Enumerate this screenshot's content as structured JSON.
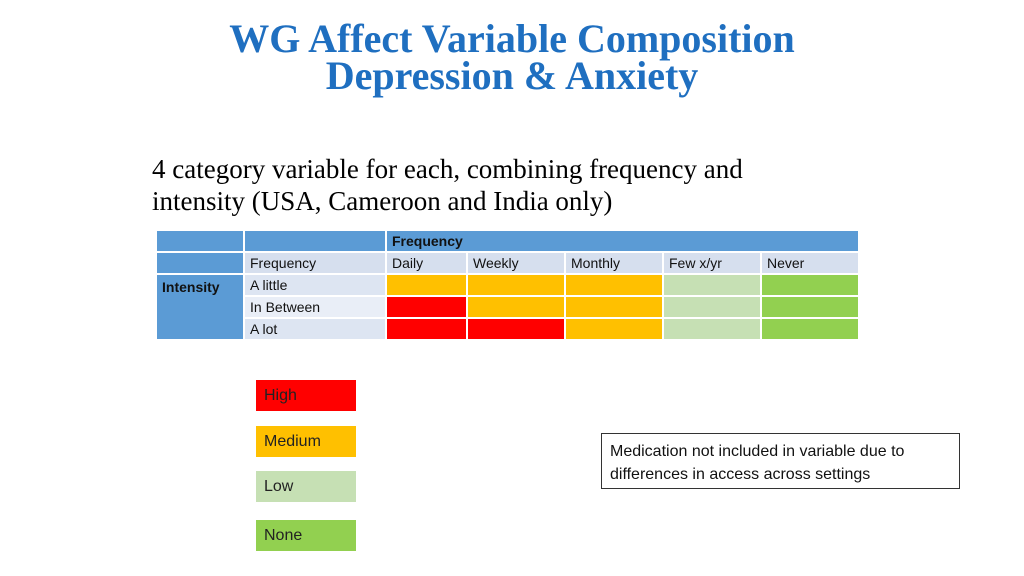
{
  "title_line1": "WG Affect Variable Composition",
  "title_line2": "Depression & Anxiety",
  "subtitle_line1": "4 category variable for each, combining frequency and",
  "subtitle_line2": "intensity (USA, Cameroon and India only)",
  "colors": {
    "High": "#ff0000",
    "Medium": "#ffc000",
    "Low": "#c6e0b4",
    "None": "#92d050"
  },
  "table": {
    "frequency_header": "Frequency",
    "frequency_row_label": "Frequency",
    "intensity_label": "Intensity",
    "frequency_columns": [
      "Daily",
      "Weekly",
      "Monthly",
      "Few x/yr",
      "Never"
    ],
    "rows": [
      {
        "label": "A little",
        "levels": [
          "Medium",
          "Medium",
          "Medium",
          "Low",
          "None"
        ]
      },
      {
        "label": "In Between",
        "levels": [
          "High",
          "Medium",
          "Medium",
          "Low",
          "None"
        ]
      },
      {
        "label": "A lot",
        "levels": [
          "High",
          "High",
          "Medium",
          "Low",
          "None"
        ]
      }
    ]
  },
  "legend": [
    {
      "label": "High",
      "level": "High"
    },
    {
      "label": "Medium",
      "level": "Medium"
    },
    {
      "label": "Low",
      "level": "Low"
    },
    {
      "label": "None",
      "level": "None"
    }
  ],
  "note": "Medication not included in variable due to differences in access across settings"
}
